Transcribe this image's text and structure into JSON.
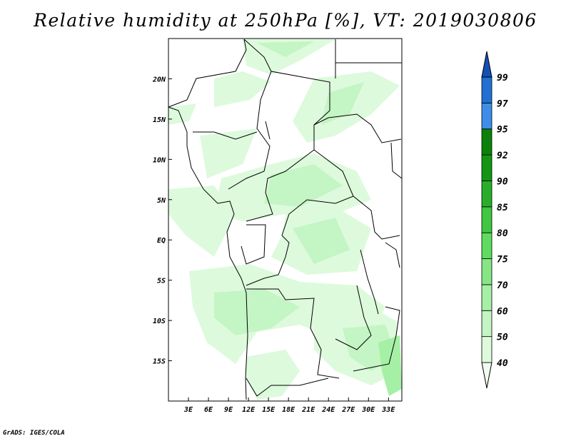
{
  "title": "Relative humidity at 250hPa [%], VT: 2019030806",
  "credit": "GrADS: IGES/COLA",
  "map": {
    "lon_range": [
      0,
      35
    ],
    "lat_range": [
      -20,
      25
    ],
    "x_ticks": [
      {
        "value": 3,
        "label": "3E"
      },
      {
        "value": 6,
        "label": "6E"
      },
      {
        "value": 9,
        "label": "9E"
      },
      {
        "value": 12,
        "label": "12E"
      },
      {
        "value": 15,
        "label": "15E"
      },
      {
        "value": 18,
        "label": "18E"
      },
      {
        "value": 21,
        "label": "21E"
      },
      {
        "value": 24,
        "label": "24E"
      },
      {
        "value": 27,
        "label": "27E"
      },
      {
        "value": 30,
        "label": "30E"
      },
      {
        "value": 33,
        "label": "33E"
      }
    ],
    "y_ticks": [
      {
        "value": 20,
        "label": "20N"
      },
      {
        "value": 15,
        "label": "15N"
      },
      {
        "value": 10,
        "label": "10N"
      },
      {
        "value": 5,
        "label": "5N"
      },
      {
        "value": 0,
        "label": "EQ"
      },
      {
        "value": -5,
        "label": "5S"
      },
      {
        "value": -10,
        "label": "10S"
      },
      {
        "value": -15,
        "label": "15S"
      }
    ]
  },
  "colorbar": {
    "levels": [
      "40",
      "50",
      "60",
      "70",
      "75",
      "80",
      "85",
      "90",
      "92",
      "95",
      "97",
      "99"
    ],
    "colors": [
      "#f0fcf0",
      "#ddfadd",
      "#c4f5c4",
      "#a6f0a6",
      "#86e686",
      "#5fdb5f",
      "#40c840",
      "#2aae2a",
      "#149614",
      "#0a820a",
      "#3e8ee8",
      "#2270d4",
      "#1450b4"
    ]
  }
}
